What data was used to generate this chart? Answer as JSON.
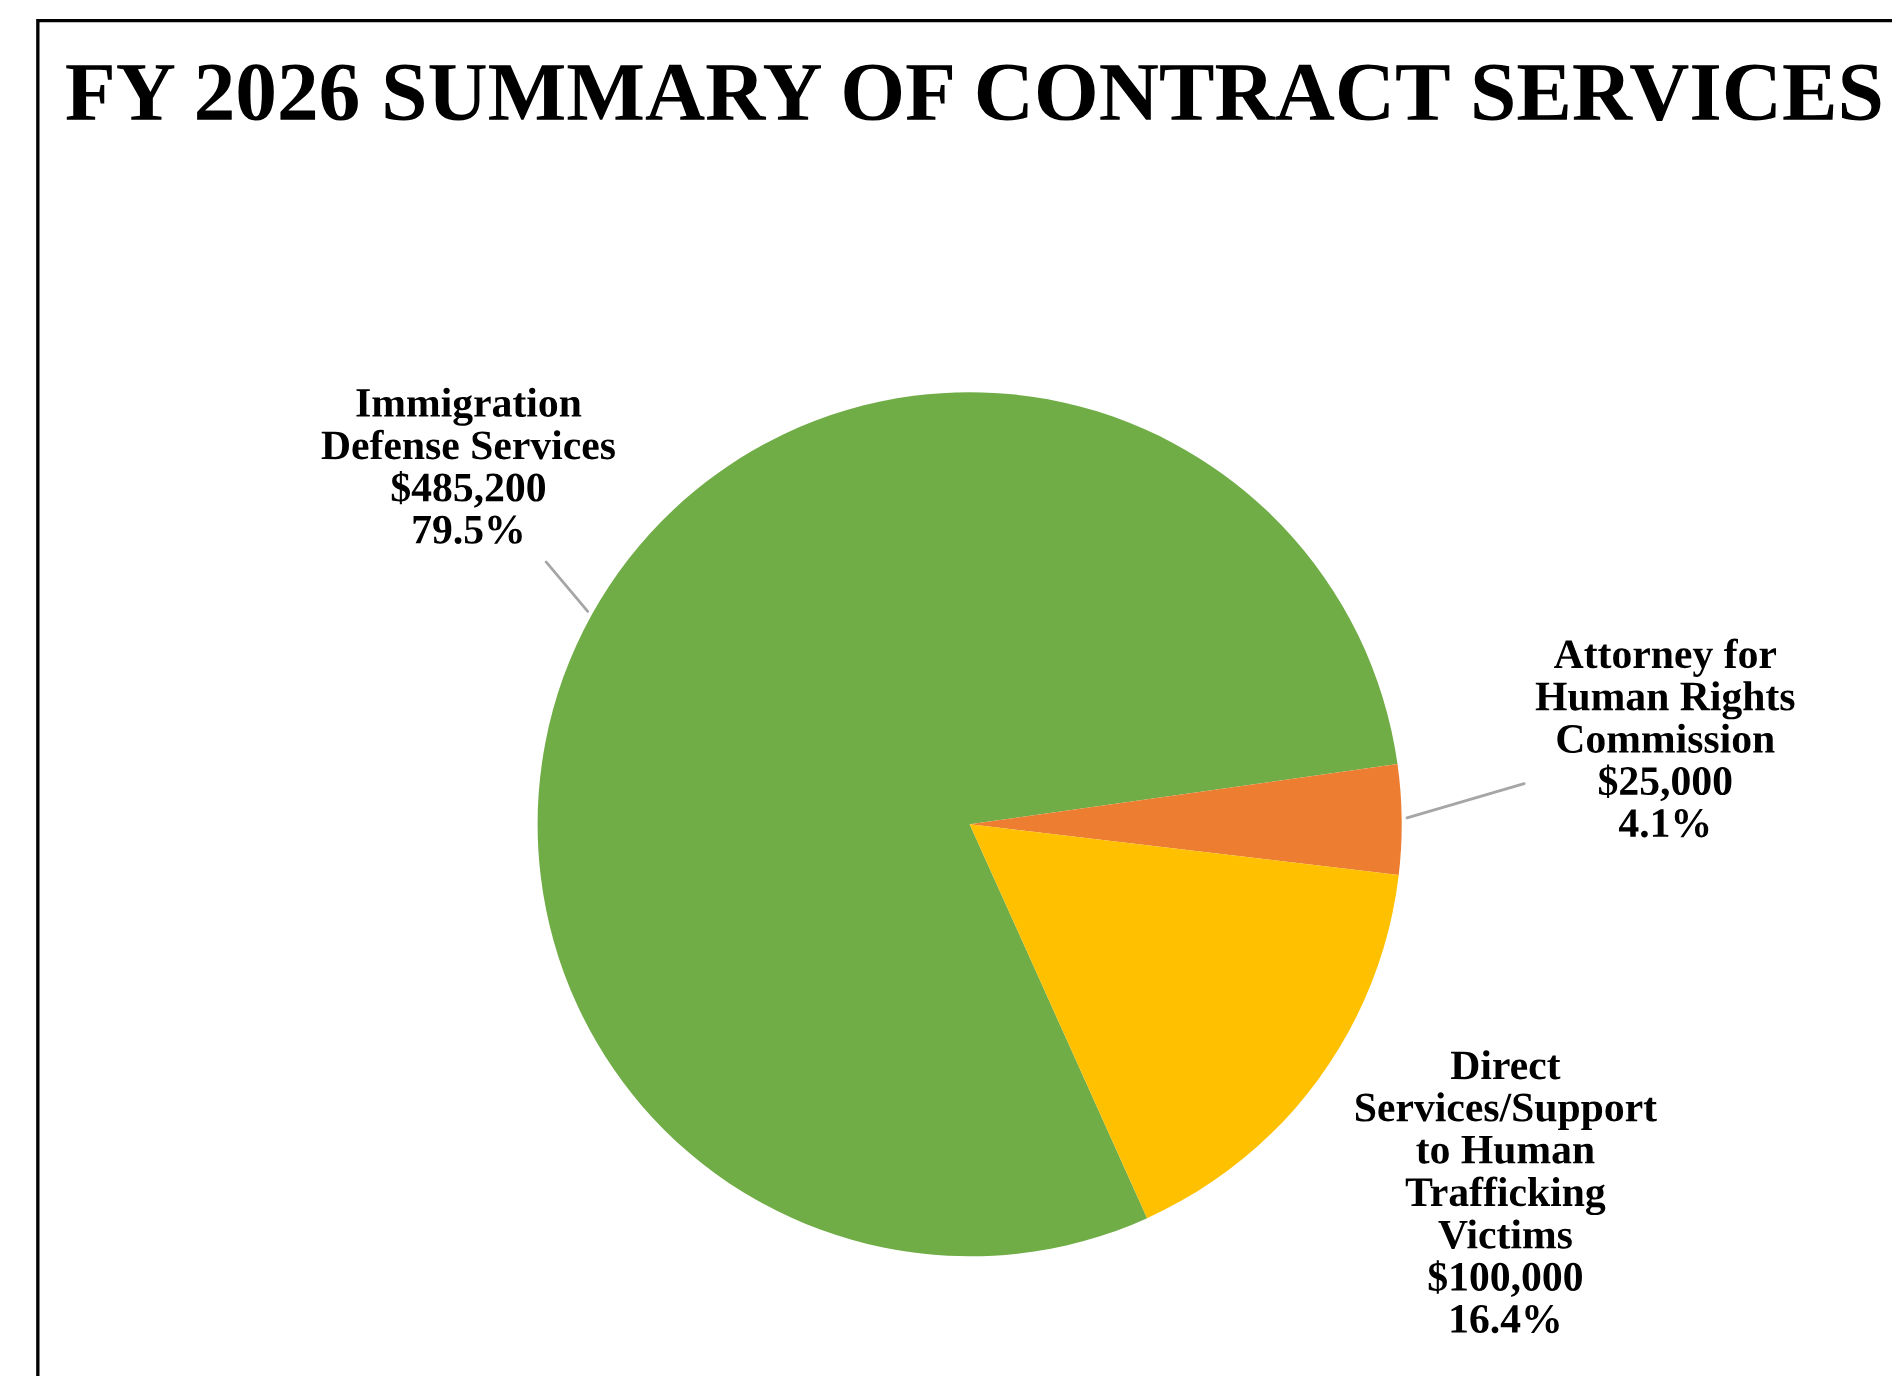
{
  "chart_data": {
    "type": "pie",
    "title": "FY 2026 SUMMARY OF CONTRACT SERVICES",
    "categories": [
      "Immigration\nDefense Services",
      "Attorney for\nHuman Rights\nCommission",
      "Direct\nServices/Support\nto Human\nTrafficking\nVictims"
    ],
    "values": [
      485200,
      25000,
      100000
    ],
    "colors": [
      "#70ad47",
      "#ed7d31",
      "#ffc000"
    ],
    "value_labels": [
      "$485,200\n79.5%",
      "$25,000\n4.1%",
      "$100,000\n16.4%"
    ],
    "legend": false
  }
}
